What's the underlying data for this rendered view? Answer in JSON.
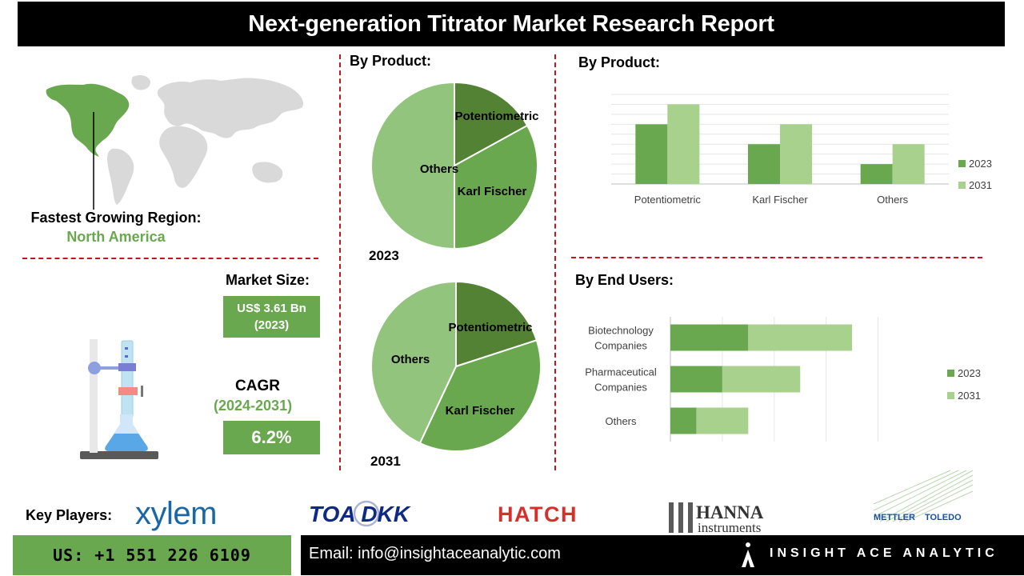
{
  "title": "Next-generation Titrator Market Research Report",
  "region": {
    "label": "Fastest Growing Region:",
    "value": "North America"
  },
  "market_size": {
    "label": "Market Size:",
    "value_line1": "US$ 3.61 Bn",
    "value_line2": "(2023)"
  },
  "cagr": {
    "label": "CAGR",
    "years": "(2024-2031)",
    "value": "6.2%"
  },
  "sections": {
    "pie_title": "By Product:",
    "bar_title": "By Product:",
    "end_users_title": "By End Users:"
  },
  "key_players": {
    "label": "Key Players:",
    "logos": [
      "xylem",
      "TOA DKK",
      "HATCH",
      "HANNA",
      "instruments",
      "METTLER",
      "TOLEDO"
    ]
  },
  "footer": {
    "phone": "US: +1 551 226 6109",
    "email": "Email: info@insightaceanalytic.com",
    "brand": "INSIGHT ACE ANALYTIC"
  },
  "colors": {
    "dark_green": "#548235",
    "mid_green": "#6aa84f",
    "light_green": "#a9d18e",
    "pie_light": "#93c47d",
    "divider": "#c0161e"
  },
  "chart_data": [
    {
      "type": "pie",
      "year": "2023",
      "slices": [
        {
          "label": "Potentiometric",
          "value": 17
        },
        {
          "label": "Karl Fischer",
          "value": 33
        },
        {
          "label": "Others",
          "value": 50
        }
      ]
    },
    {
      "type": "pie",
      "year": "2031",
      "slices": [
        {
          "label": "Potentiometric",
          "value": 20
        },
        {
          "label": "Karl Fischer",
          "value": 37
        },
        {
          "label": "Others",
          "value": 43
        }
      ]
    },
    {
      "type": "bar",
      "categories": [
        "Potentiometric",
        "Karl Fischer",
        "Others"
      ],
      "series": [
        {
          "name": "2023",
          "values": [
            3,
            2,
            1
          ]
        },
        {
          "name": "2031",
          "values": [
            4,
            3,
            2
          ]
        }
      ],
      "ylim": [
        0,
        4.5
      ],
      "grid": true,
      "legend": "right"
    },
    {
      "type": "bar",
      "orientation": "horizontal",
      "stacked": true,
      "categories": [
        "Biotechnology Companies",
        "Pharmaceutical Companies",
        "Others"
      ],
      "series": [
        {
          "name": "2023",
          "values": [
            1.5,
            1.0,
            0.5
          ]
        },
        {
          "name": "2031",
          "values": [
            2.0,
            1.5,
            1.0
          ]
        }
      ],
      "xlim": [
        0,
        4.5
      ],
      "grid": true,
      "legend": "right"
    }
  ]
}
